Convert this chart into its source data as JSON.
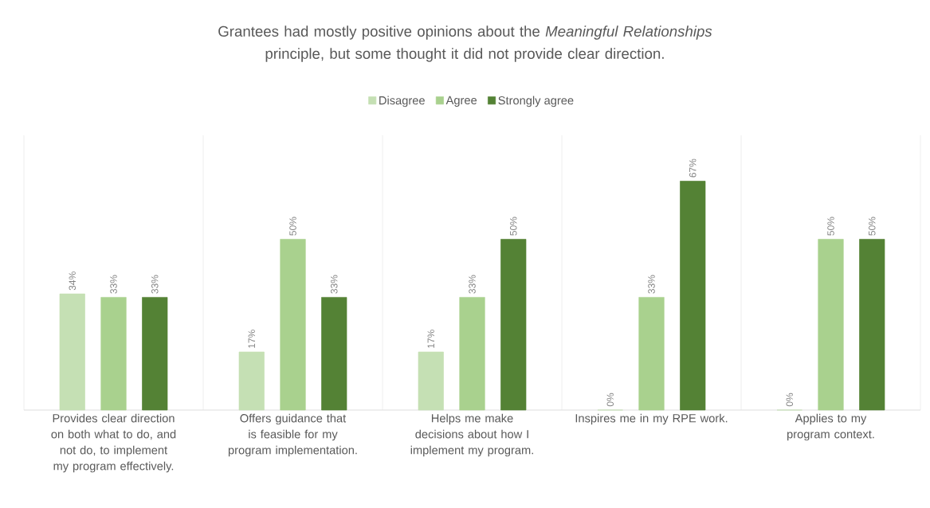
{
  "chart_data": {
    "type": "bar",
    "title": "Grantees had mostly positive opinions about the *Meaningful Relationships* principle, but some thought it did not provide clear direction.",
    "categories": [
      "Provides clear direction on both what to do, and not do, to implement my program effectively.",
      "Offers guidance that is feasible for my program implementation.",
      "Helps me make decisions about how I implement my program.",
      "Inspires me in my RPE work.",
      "Applies to my program context."
    ],
    "series": [
      {
        "name": "Disagree",
        "color": "#c5e0b4",
        "values": [
          34,
          17,
          17,
          0,
          0
        ],
        "value_labels": [
          "34%",
          "17%",
          "17%",
          "0%",
          "0%"
        ]
      },
      {
        "name": "Agree",
        "color": "#a9d18e",
        "values": [
          33,
          50,
          33,
          33,
          50
        ],
        "value_labels": [
          "33%",
          "50%",
          "33%",
          "33%",
          "50%"
        ]
      },
      {
        "name": "Strongly agree",
        "color": "#548235",
        "values": [
          33,
          33,
          50,
          67,
          50
        ],
        "value_labels": [
          "33%",
          "33%",
          "50%",
          "67%",
          "50%"
        ]
      }
    ],
    "legend": "top"
  }
}
